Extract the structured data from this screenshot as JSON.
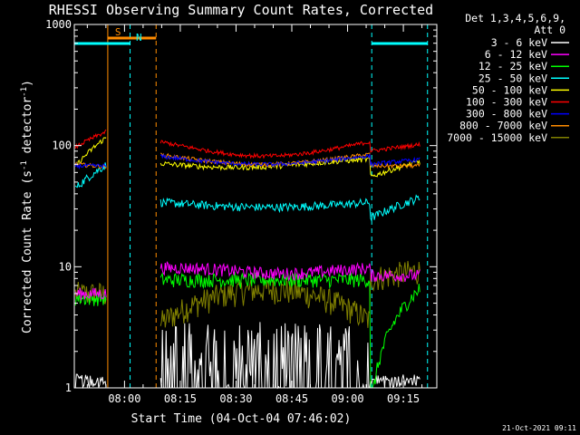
{
  "chart_data": {
    "type": "line",
    "title": "RHESSI Observing Summary Count Rates, Corrected",
    "xlabel": "Start Time (04-Oct-04 07:46:02)",
    "ylabel_prefix": "Corrected Count Rate (s",
    "ylabel_sup1": "-1",
    "ylabel_mid": " detector",
    "ylabel_sup2": "-1",
    "ylabel_suffix": ")",
    "yscale": "log",
    "ylim": [
      1,
      1000
    ],
    "y_ticks": [
      {
        "value": 1,
        "label": "1"
      },
      {
        "value": 10,
        "label": "10"
      },
      {
        "value": 100,
        "label": "100"
      },
      {
        "value": 1000,
        "label": "1000"
      }
    ],
    "x_range_minutes": [
      -13.5,
      84
    ],
    "x_ticks": [
      {
        "minutes": 0,
        "label": "08:00"
      },
      {
        "minutes": 15,
        "label": "08:15"
      },
      {
        "minutes": 30,
        "label": "08:30"
      },
      {
        "minutes": 45,
        "label": "08:45"
      },
      {
        "minutes": 60,
        "label": "09:00"
      },
      {
        "minutes": 75,
        "label": "09:15"
      }
    ],
    "legend": {
      "placement": "right",
      "header1": "Det 1,3,4,5,6,9,",
      "header2": "Att 0"
    },
    "series": [
      {
        "name": "3 - 6 keV",
        "color": "#ffffff"
      },
      {
        "name": "6 - 12 keV",
        "color": "#ff00ff"
      },
      {
        "name": "12 - 25 keV",
        "color": "#00ff00"
      },
      {
        "name": "25 - 50 keV",
        "color": "#00ffff"
      },
      {
        "name": "50 - 100 keV",
        "color": "#ffff00"
      },
      {
        "name": "100 - 300 keV",
        "color": "#ff0000"
      },
      {
        "name": "300 - 800 keV",
        "color": "#0000ff"
      },
      {
        "name": "800 - 7000 keV",
        "color": "#ff8c00"
      },
      {
        "name": "7000 - 15000 keV",
        "color": "#808000"
      }
    ],
    "flag_lines": [
      {
        "label": "S",
        "color": "#ff8c00",
        "start_min": -4.5,
        "end_min": 8.5
      },
      {
        "label": "N",
        "color": "#00ffff",
        "start_min": -13.5,
        "end_min": 1.5
      },
      {
        "label": "",
        "color": "#00ffff",
        "start_min": 66.5,
        "end_min": 81.5
      }
    ],
    "gaps": [
      {
        "start_min": -4.5,
        "end_min": 8.5
      }
    ],
    "timestamp": "21-Oct-2021 09:11"
  }
}
